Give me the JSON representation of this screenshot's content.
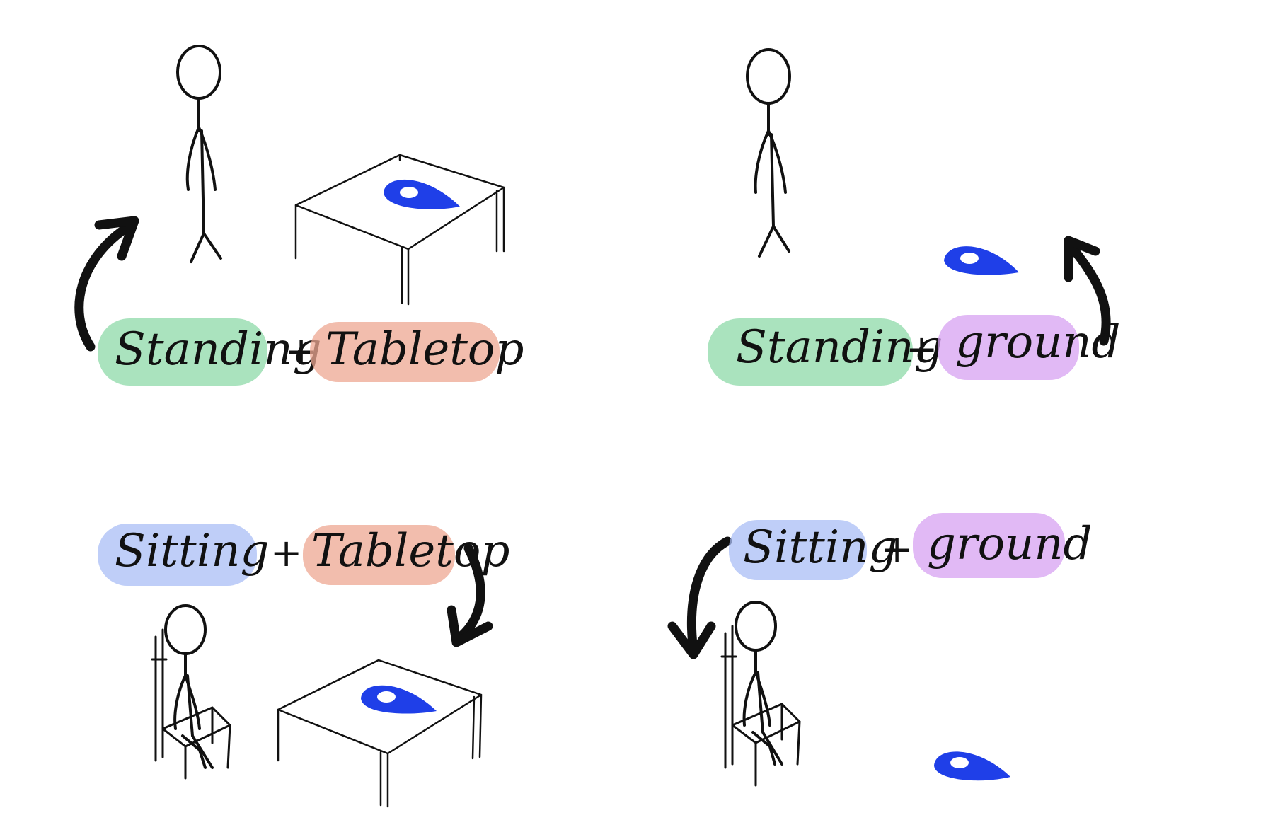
{
  "panels": [
    {
      "id": "standing-tabletop",
      "posture": "Standing",
      "plus": "+",
      "surface": "Tabletop"
    },
    {
      "id": "standing-ground",
      "posture": "Standing",
      "plus": "+",
      "surface": "ground"
    },
    {
      "id": "sitting-tabletop",
      "posture": "Sitting",
      "plus": "+",
      "surface": "Tabletop"
    },
    {
      "id": "sitting-ground",
      "posture": "Sitting",
      "plus": "+",
      "surface": "ground"
    }
  ],
  "colors": {
    "standing": "#8ed9a8",
    "sitting": "#a9bdf5",
    "tabletop": "#eea791",
    "ground": "#d7a2f2",
    "marker": "#1f3fe8",
    "ink": "#111111"
  },
  "icons": [
    "stick-figure-standing-icon",
    "stick-figure-sitting-icon",
    "chair-icon",
    "table-icon",
    "location-pin-icon",
    "curved-arrow-icon"
  ]
}
